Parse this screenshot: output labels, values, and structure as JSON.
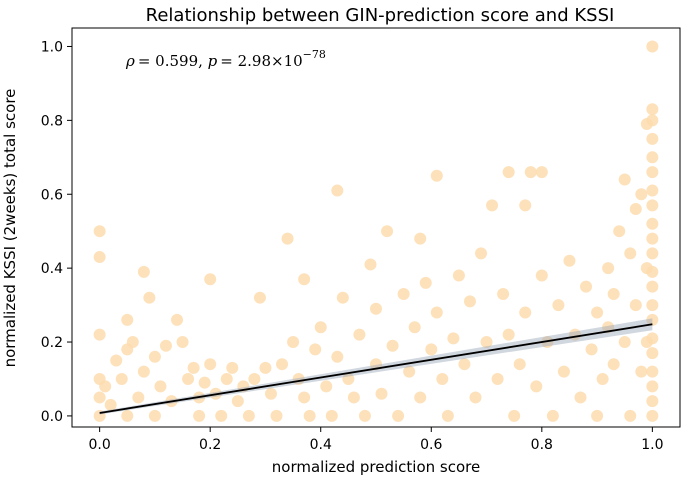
{
  "chart_data": {
    "type": "scatter",
    "title": "Relationship between GIN-prediction score and KSSI",
    "xlabel": "normalized prediction score",
    "ylabel": "normalized KSSI (2weeks) total score",
    "xlim": [
      -0.05,
      1.05
    ],
    "ylim": [
      -0.03,
      1.05
    ],
    "xticks": [
      "0.0",
      "0.2",
      "0.4",
      "0.6",
      "0.8",
      "1.0"
    ],
    "yticks": [
      "0.0",
      "0.2",
      "0.4",
      "0.6",
      "0.8",
      "1.0"
    ],
    "annotation": {
      "rho_symbol": "ρ",
      "rho_value": "= 0.599, ",
      "p_symbol": "p",
      "p_value": "= 2.98×10",
      "p_exponent": "−78"
    },
    "point_color": "#fddcae",
    "line_color": "#000000",
    "band_color": "#9aa7b8",
    "grid": false,
    "regression": {
      "x": [
        0.0,
        1.0
      ],
      "y": [
        0.008,
        0.248
      ]
    },
    "band_halfwidth": [
      0.004,
      0.016
    ],
    "points": [
      [
        0.0,
        0.5
      ],
      [
        0.0,
        0.43
      ],
      [
        0.0,
        0.22
      ],
      [
        0.0,
        0.1
      ],
      [
        0.0,
        0.05
      ],
      [
        0.0,
        0.0
      ],
      [
        0.01,
        0.08
      ],
      [
        0.02,
        0.03
      ],
      [
        0.03,
        0.15
      ],
      [
        0.04,
        0.1
      ],
      [
        0.05,
        0.0
      ],
      [
        0.05,
        0.18
      ],
      [
        0.05,
        0.26
      ],
      [
        0.06,
        0.2
      ],
      [
        0.07,
        0.05
      ],
      [
        0.08,
        0.12
      ],
      [
        0.08,
        0.39
      ],
      [
        0.09,
        0.32
      ],
      [
        0.1,
        0.16
      ],
      [
        0.1,
        0.0
      ],
      [
        0.11,
        0.08
      ],
      [
        0.12,
        0.19
      ],
      [
        0.13,
        0.04
      ],
      [
        0.14,
        0.26
      ],
      [
        0.15,
        0.2
      ],
      [
        0.16,
        0.1
      ],
      [
        0.17,
        0.13
      ],
      [
        0.18,
        0.0
      ],
      [
        0.18,
        0.05
      ],
      [
        0.19,
        0.09
      ],
      [
        0.2,
        0.37
      ],
      [
        0.2,
        0.14
      ],
      [
        0.21,
        0.06
      ],
      [
        0.22,
        0.0
      ],
      [
        0.23,
        0.1
      ],
      [
        0.24,
        0.13
      ],
      [
        0.25,
        0.04
      ],
      [
        0.26,
        0.08
      ],
      [
        0.27,
        0.0
      ],
      [
        0.28,
        0.1
      ],
      [
        0.29,
        0.32
      ],
      [
        0.3,
        0.13
      ],
      [
        0.31,
        0.06
      ],
      [
        0.32,
        0.0
      ],
      [
        0.33,
        0.14
      ],
      [
        0.34,
        0.48
      ],
      [
        0.35,
        0.2
      ],
      [
        0.36,
        0.1
      ],
      [
        0.37,
        0.37
      ],
      [
        0.37,
        0.05
      ],
      [
        0.38,
        0.0
      ],
      [
        0.39,
        0.18
      ],
      [
        0.4,
        0.24
      ],
      [
        0.41,
        0.08
      ],
      [
        0.42,
        0.0
      ],
      [
        0.43,
        0.61
      ],
      [
        0.43,
        0.16
      ],
      [
        0.44,
        0.32
      ],
      [
        0.45,
        0.1
      ],
      [
        0.46,
        0.05
      ],
      [
        0.47,
        0.22
      ],
      [
        0.48,
        0.0
      ],
      [
        0.49,
        0.41
      ],
      [
        0.5,
        0.14
      ],
      [
        0.5,
        0.29
      ],
      [
        0.51,
        0.06
      ],
      [
        0.52,
        0.5
      ],
      [
        0.53,
        0.19
      ],
      [
        0.54,
        0.0
      ],
      [
        0.55,
        0.33
      ],
      [
        0.56,
        0.12
      ],
      [
        0.57,
        0.24
      ],
      [
        0.58,
        0.48
      ],
      [
        0.58,
        0.05
      ],
      [
        0.59,
        0.36
      ],
      [
        0.6,
        0.18
      ],
      [
        0.61,
        0.65
      ],
      [
        0.61,
        0.28
      ],
      [
        0.62,
        0.1
      ],
      [
        0.63,
        0.0
      ],
      [
        0.64,
        0.21
      ],
      [
        0.65,
        0.38
      ],
      [
        0.66,
        0.14
      ],
      [
        0.67,
        0.31
      ],
      [
        0.68,
        0.05
      ],
      [
        0.69,
        0.44
      ],
      [
        0.7,
        0.2
      ],
      [
        0.71,
        0.57
      ],
      [
        0.72,
        0.1
      ],
      [
        0.73,
        0.33
      ],
      [
        0.74,
        0.66
      ],
      [
        0.74,
        0.22
      ],
      [
        0.75,
        0.0
      ],
      [
        0.76,
        0.14
      ],
      [
        0.77,
        0.57
      ],
      [
        0.77,
        0.28
      ],
      [
        0.78,
        0.66
      ],
      [
        0.79,
        0.08
      ],
      [
        0.8,
        0.66
      ],
      [
        0.8,
        0.38
      ],
      [
        0.81,
        0.2
      ],
      [
        0.82,
        0.0
      ],
      [
        0.83,
        0.3
      ],
      [
        0.84,
        0.12
      ],
      [
        0.85,
        0.42
      ],
      [
        0.86,
        0.22
      ],
      [
        0.87,
        0.05
      ],
      [
        0.88,
        0.35
      ],
      [
        0.89,
        0.18
      ],
      [
        0.9,
        0.28
      ],
      [
        0.9,
        0.0
      ],
      [
        0.91,
        0.1
      ],
      [
        0.92,
        0.24
      ],
      [
        0.92,
        0.4
      ],
      [
        0.93,
        0.33
      ],
      [
        0.93,
        0.14
      ],
      [
        0.94,
        0.5
      ],
      [
        0.95,
        0.2
      ],
      [
        0.95,
        0.64
      ],
      [
        0.96,
        0.44
      ],
      [
        0.96,
        0.0
      ],
      [
        0.97,
        0.56
      ],
      [
        0.97,
        0.3
      ],
      [
        0.98,
        0.6
      ],
      [
        0.98,
        0.12
      ],
      [
        0.99,
        0.79
      ],
      [
        0.99,
        0.2
      ],
      [
        0.99,
        0.4
      ],
      [
        1.0,
        1.0
      ],
      [
        1.0,
        0.83
      ],
      [
        1.0,
        0.8
      ],
      [
        1.0,
        0.75
      ],
      [
        1.0,
        0.7
      ],
      [
        1.0,
        0.66
      ],
      [
        1.0,
        0.61
      ],
      [
        1.0,
        0.57
      ],
      [
        1.0,
        0.52
      ],
      [
        1.0,
        0.48
      ],
      [
        1.0,
        0.44
      ],
      [
        1.0,
        0.39
      ],
      [
        1.0,
        0.35
      ],
      [
        1.0,
        0.3
      ],
      [
        1.0,
        0.26
      ],
      [
        1.0,
        0.21
      ],
      [
        1.0,
        0.17
      ],
      [
        1.0,
        0.12
      ],
      [
        1.0,
        0.08
      ],
      [
        1.0,
        0.04
      ],
      [
        1.0,
        0.0
      ]
    ]
  }
}
